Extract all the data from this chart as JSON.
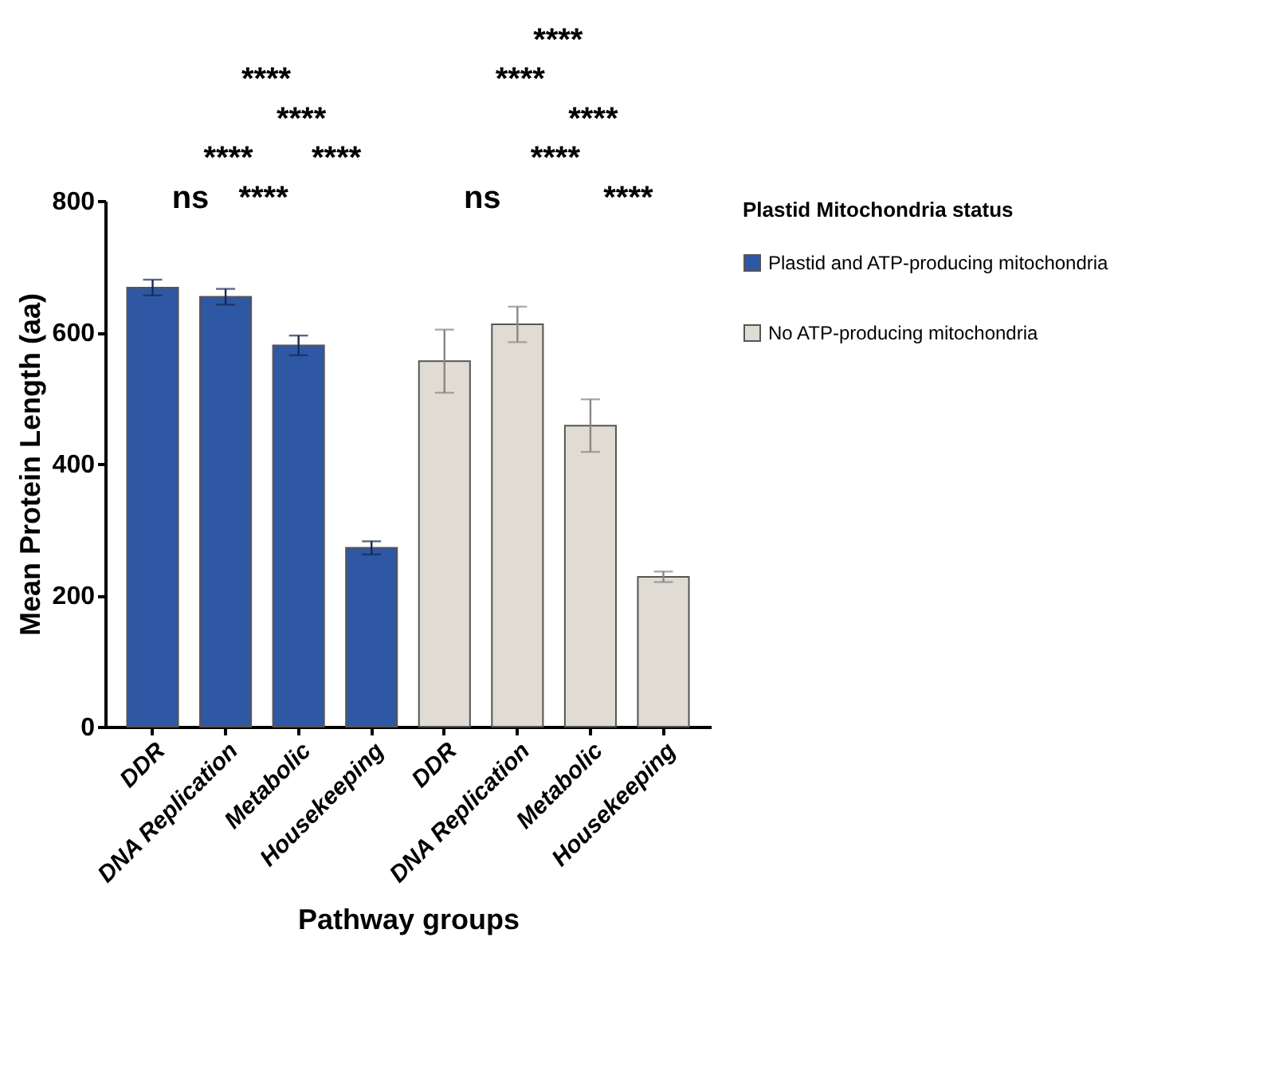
{
  "chart_data": {
    "type": "bar",
    "xlabel": "Pathway groups",
    "ylabel": "Mean Protein Length (aa)",
    "legend_title": "Plastid Mitochondria status",
    "categories": [
      "DDR",
      "DNA Replication",
      "Metabolic",
      "Housekeeping",
      "DDR",
      "DNA Replication",
      "Metabolic",
      "Housekeeping"
    ],
    "series": [
      {
        "name": "Plastid and ATP-producing mitochondria",
        "color": "#2e58a4",
        "values": [
          668,
          654,
          580,
          272,
          null,
          null,
          null,
          null
        ],
        "errors": [
          12,
          12,
          15,
          10,
          null,
          null,
          null,
          null
        ]
      },
      {
        "name": "No ATP-producing mitochondria",
        "color": "#e0dcd3",
        "values": [
          null,
          null,
          null,
          null,
          556,
          612,
          458,
          228
        ],
        "errors": [
          null,
          null,
          null,
          null,
          48,
          27,
          40,
          8
        ]
      }
    ],
    "ylim": [
      0,
      800
    ],
    "yticks": [
      0,
      200,
      400,
      600,
      800
    ],
    "grid": false,
    "legend": "right",
    "annotations": [
      "ns",
      "****",
      "****",
      "****",
      "****",
      "****",
      "ns",
      "****",
      "****",
      "****",
      "****",
      "****"
    ]
  }
}
